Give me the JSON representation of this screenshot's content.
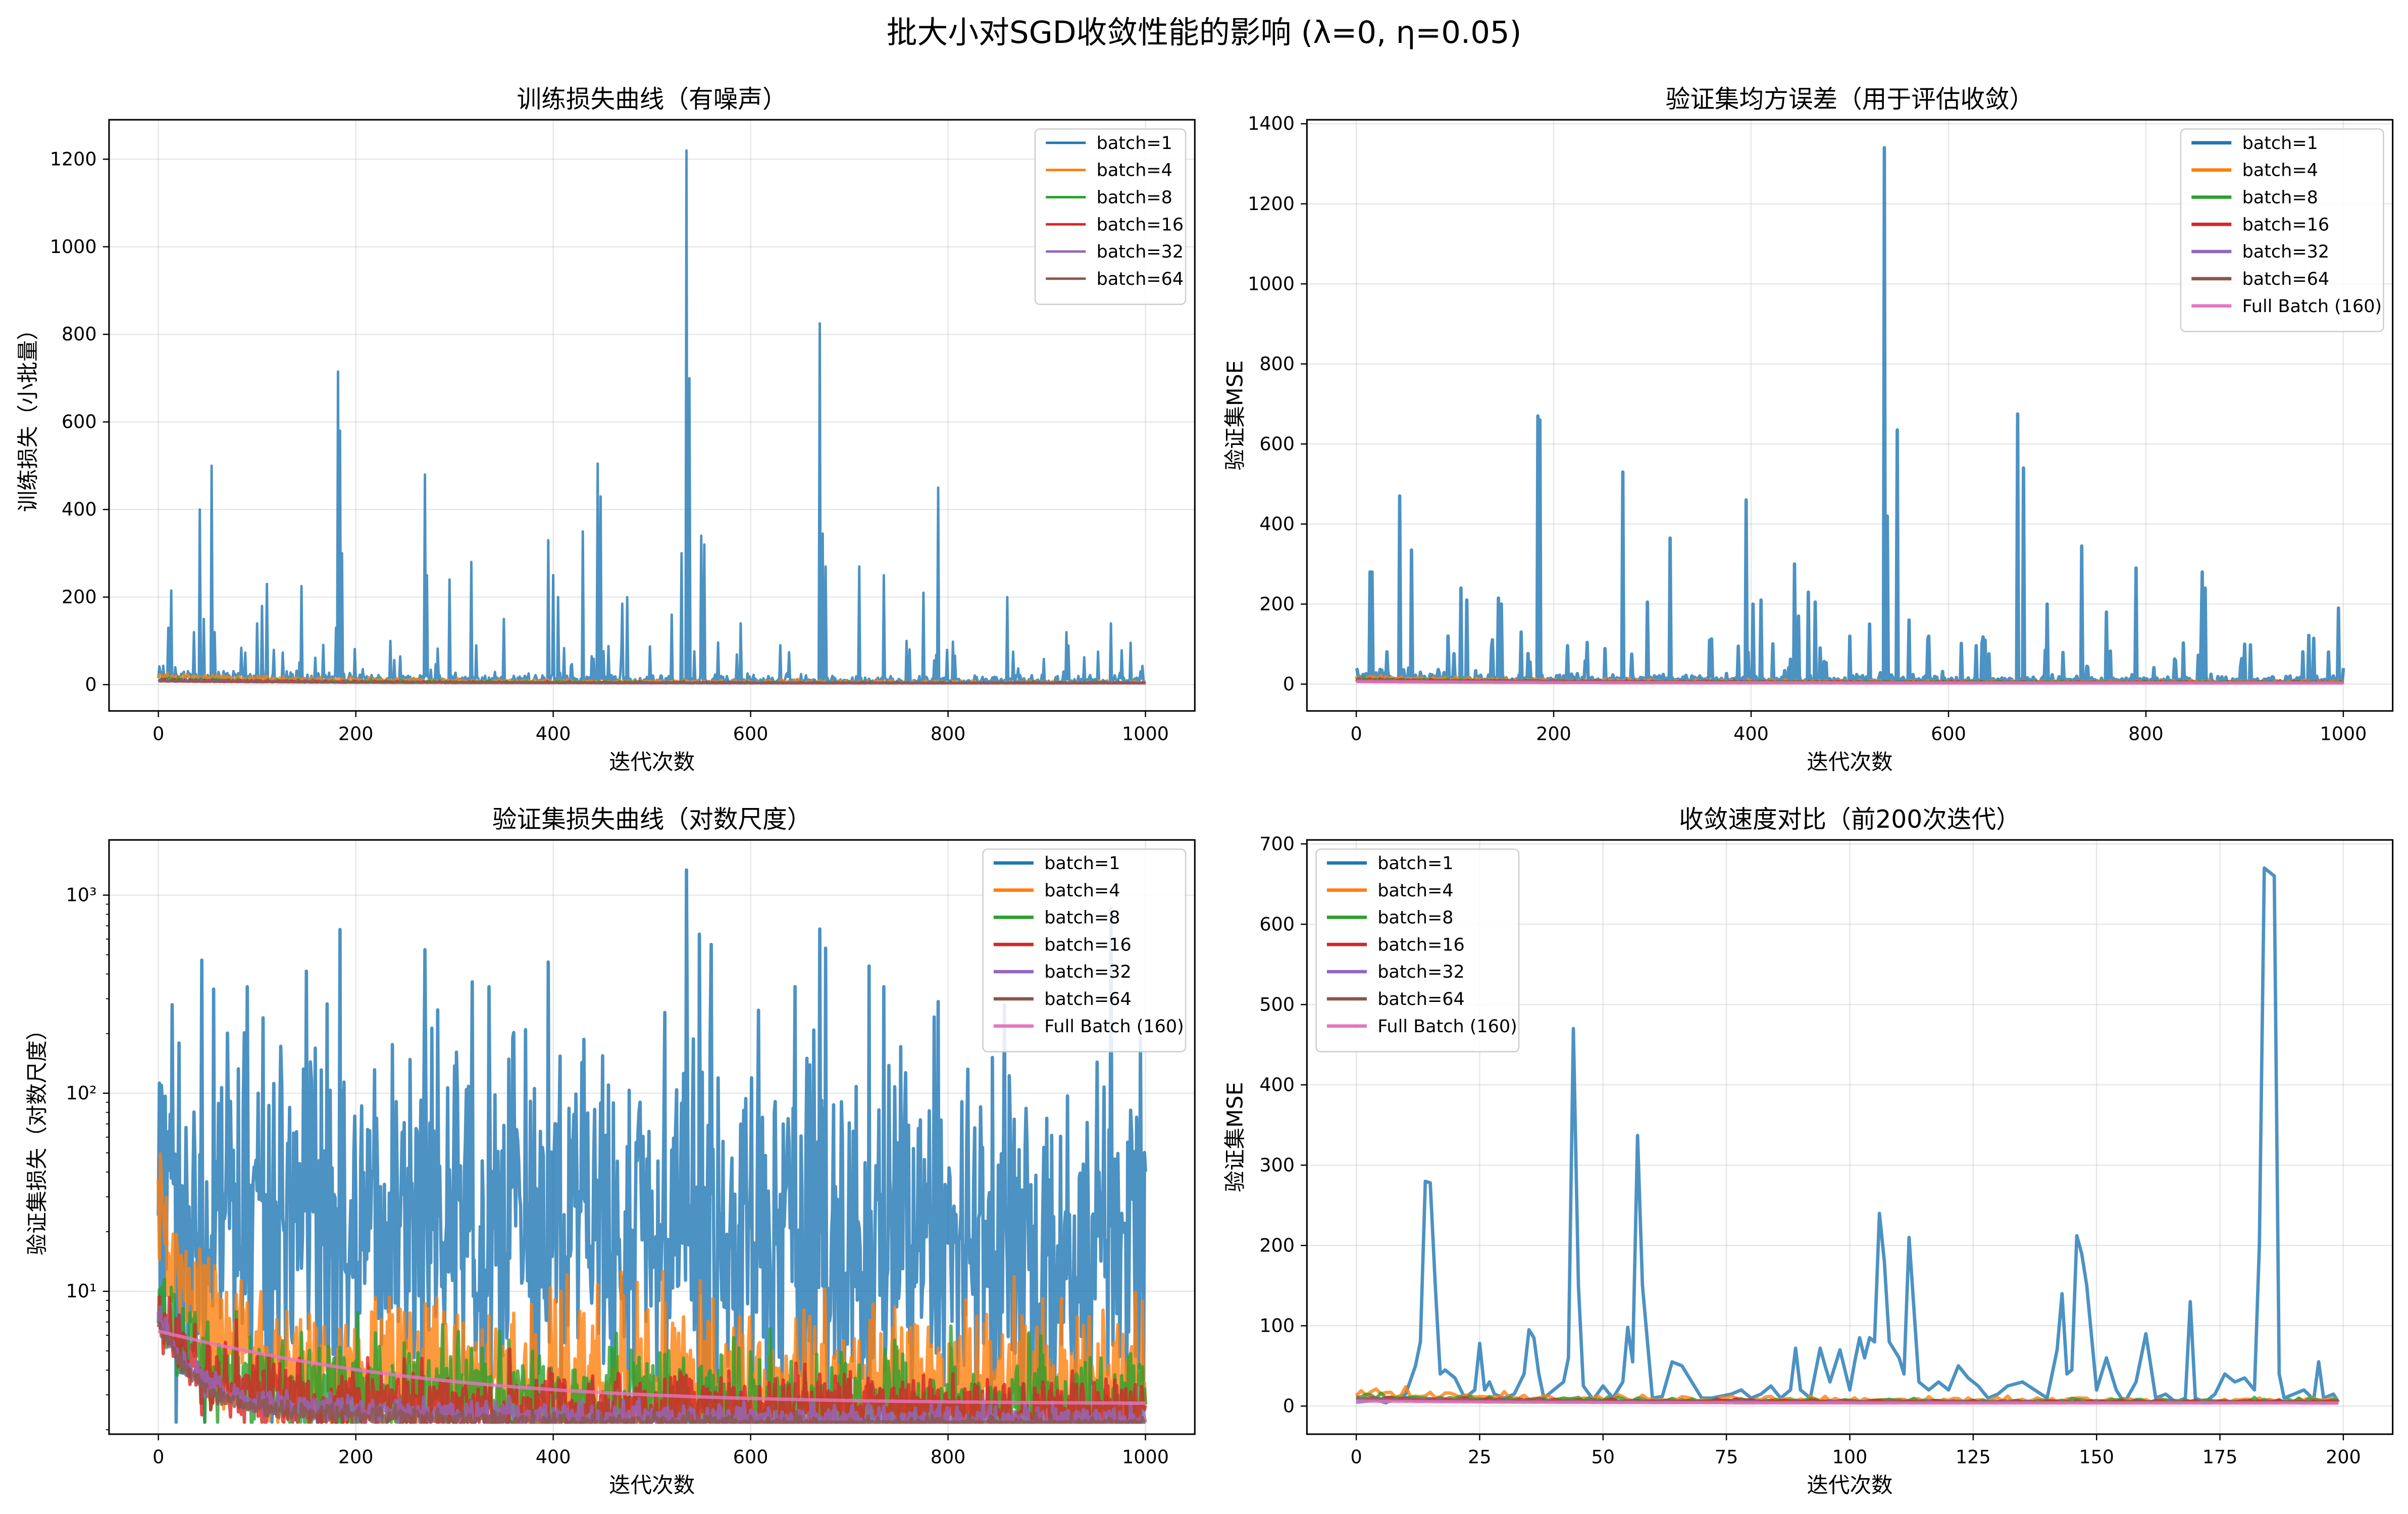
{
  "figure": {
    "title": "批大小对SGD收敛性能的影响 (λ=0, η=0.05)"
  },
  "colors": {
    "batch_1": "#1f77b4",
    "batch_4": "#ff7f0e",
    "batch_8": "#2ca02c",
    "batch_16": "#d62728",
    "batch_32": "#9467bd",
    "batch_64": "#8c564b",
    "full_batch": "#e377c2"
  },
  "chart_data": [
    {
      "id": "train",
      "type": "line",
      "title": "训练损失曲线（有噪声）",
      "xlabel": "迭代次数",
      "ylabel": "训练损失（小批量）",
      "xlim": [
        -50,
        1050
      ],
      "ylim": [
        -60,
        1290
      ],
      "yscale": "linear",
      "xticks": [
        0,
        200,
        400,
        600,
        800,
        1000
      ],
      "yticks": [
        0,
        200,
        400,
        600,
        800,
        1000,
        1200
      ],
      "grid": true,
      "legend": "upper right",
      "series": [
        {
          "name": "batch=1",
          "color": "#1f77b4",
          "kind": "noisy",
          "start": 8,
          "end": 3,
          "noise": 14,
          "spikes": [
            [
              10,
              130
            ],
            [
              13,
              215
            ],
            [
              36,
              120
            ],
            [
              42,
              400
            ],
            [
              46,
              150
            ],
            [
              54,
              500
            ],
            [
              57,
              120
            ],
            [
              100,
              140
            ],
            [
              105,
              180
            ],
            [
              110,
              230
            ],
            [
              145,
              225
            ],
            [
              180,
              130
            ],
            [
              182,
              715
            ],
            [
              184,
              580
            ],
            [
              186,
              300
            ],
            [
              235,
              100
            ],
            [
              270,
              480
            ],
            [
              272,
              250
            ],
            [
              295,
              240
            ],
            [
              317,
              280
            ],
            [
              350,
              150
            ],
            [
              395,
              330
            ],
            [
              400,
              250
            ],
            [
              405,
              200
            ],
            [
              430,
              350
            ],
            [
              445,
              505
            ],
            [
              448,
              430
            ],
            [
              470,
              185
            ],
            [
              475,
              200
            ],
            [
              520,
              160
            ],
            [
              530,
              300
            ],
            [
              535,
              1220
            ],
            [
              538,
              700
            ],
            [
              550,
              340
            ],
            [
              553,
              320
            ],
            [
              590,
              140
            ],
            [
              630,
              90
            ],
            [
              670,
              825
            ],
            [
              673,
              345
            ],
            [
              676,
              270
            ],
            [
              710,
              270
            ],
            [
              735,
              250
            ],
            [
              758,
              100
            ],
            [
              775,
              210
            ],
            [
              790,
              450
            ],
            [
              860,
              200
            ],
            [
              920,
              120
            ],
            [
              965,
              140
            ],
            [
              995,
              30
            ]
          ],
          "peak_density": 0.06,
          "peak_max": 90
        },
        {
          "name": "batch=4",
          "color": "#ff7f0e",
          "kind": "noisy",
          "start": 16,
          "end": 3,
          "noise": 5
        },
        {
          "name": "batch=8",
          "color": "#2ca02c",
          "kind": "noisy",
          "start": 10,
          "end": 3,
          "noise": 3
        },
        {
          "name": "batch=16",
          "color": "#d62728",
          "kind": "noisy",
          "start": 9,
          "end": 3,
          "noise": 2
        },
        {
          "name": "batch=32",
          "color": "#9467bd",
          "kind": "noisy",
          "start": 8,
          "end": 3,
          "noise": 1
        },
        {
          "name": "batch=64",
          "color": "#8c564b",
          "kind": "noisy",
          "start": 7,
          "end": 3,
          "noise": 0.6
        }
      ]
    },
    {
      "id": "valmse",
      "type": "line",
      "title": "验证集均方误差（用于评估收敛）",
      "xlabel": "迭代次数",
      "ylabel": "验证集MSE",
      "xlim": [
        -50,
        1050
      ],
      "ylim": [
        -67,
        1410
      ],
      "yscale": "linear",
      "xticks": [
        0,
        200,
        400,
        600,
        800,
        1000
      ],
      "yticks": [
        0,
        200,
        400,
        600,
        800,
        1000,
        1200,
        1400
      ],
      "grid": true,
      "legend": "upper right",
      "series": [
        {
          "name": "batch=1",
          "color": "#1f77b4",
          "kind": "noisy",
          "start": 8,
          "end": 3,
          "noise": 12,
          "spikes": [
            [
              14,
              280
            ],
            [
              16,
              280
            ],
            [
              44,
              470
            ],
            [
              56,
              335
            ],
            [
              106,
              240
            ],
            [
              112,
              210
            ],
            [
              144,
              215
            ],
            [
              147,
              200
            ],
            [
              167,
              130
            ],
            [
              184,
              670
            ],
            [
              186,
              660
            ],
            [
              270,
              530
            ],
            [
              295,
              205
            ],
            [
              318,
              365
            ],
            [
              395,
              460
            ],
            [
              402,
              200
            ],
            [
              410,
              210
            ],
            [
              444,
              300
            ],
            [
              448,
              170
            ],
            [
              458,
              230
            ],
            [
              465,
              205
            ],
            [
              500,
              120
            ],
            [
              520,
              150
            ],
            [
              535,
              1340
            ],
            [
              538,
              420
            ],
            [
              548,
              635
            ],
            [
              560,
              160
            ],
            [
              580,
              120
            ],
            [
              670,
              675
            ],
            [
              676,
              540
            ],
            [
              700,
              200
            ],
            [
              735,
              345
            ],
            [
              760,
              180
            ],
            [
              790,
              290
            ],
            [
              857,
              280
            ],
            [
              860,
              240
            ],
            [
              900,
              100
            ],
            [
              995,
              190
            ],
            [
              1000,
              40
            ]
          ],
          "peak_density": 0.07,
          "peak_max": 110
        },
        {
          "name": "batch=4",
          "color": "#ff7f0e",
          "kind": "noisy",
          "start": 12,
          "end": 3,
          "noise": 4
        },
        {
          "name": "batch=8",
          "color": "#2ca02c",
          "kind": "noisy",
          "start": 10,
          "end": 3,
          "noise": 2.5
        },
        {
          "name": "batch=16",
          "color": "#d62728",
          "kind": "noisy",
          "start": 9,
          "end": 3,
          "noise": 1.8
        },
        {
          "name": "batch=32",
          "color": "#9467bd",
          "kind": "noisy",
          "start": 8,
          "end": 3,
          "noise": 1
        },
        {
          "name": "batch=64",
          "color": "#8c564b",
          "kind": "noisy",
          "start": 7,
          "end": 3,
          "noise": 0.6
        },
        {
          "name": "Full Batch (160)",
          "color": "#e377c2",
          "kind": "smooth",
          "start": 6.4,
          "end": 2.7
        }
      ]
    },
    {
      "id": "vallog",
      "type": "line",
      "title": "验证集损失曲线（对数尺度）",
      "xlabel": "迭代次数",
      "ylabel": "验证集损失（对数尺度）",
      "xlim": [
        -50,
        1050
      ],
      "ylim": [
        1.9,
        1900
      ],
      "yscale": "log",
      "xticks": [
        0,
        200,
        400,
        600,
        800,
        1000
      ],
      "yticks": [
        10,
        100,
        1000
      ],
      "ytick_labels": [
        "10¹",
        "10²",
        "10³"
      ],
      "grid": true,
      "legend": "upper right",
      "series": [
        {
          "name": "batch=1",
          "color": "#1f77b4",
          "kind": "lognoisy",
          "base": 25,
          "sigma": 1.1,
          "spikes": [
            [
              14,
              280
            ],
            [
              44,
              470
            ],
            [
              56,
              335
            ],
            [
              106,
              240
            ],
            [
              184,
              670
            ],
            [
              270,
              530
            ],
            [
              318,
              365
            ],
            [
              395,
              460
            ],
            [
              535,
              1340
            ],
            [
              548,
              635
            ],
            [
              670,
              675
            ],
            [
              676,
              540
            ],
            [
              735,
              345
            ],
            [
              790,
              290
            ],
            [
              857,
              280
            ],
            [
              995,
              190
            ]
          ]
        },
        {
          "name": "batch=4",
          "color": "#ff7f0e",
          "kind": "lognoisy",
          "base": 4.5,
          "sigma": 0.45,
          "startboost": 23
        },
        {
          "name": "batch=8",
          "color": "#2ca02c",
          "kind": "lognoisy",
          "base": 3.6,
          "sigma": 0.3,
          "startboost": 10
        },
        {
          "name": "batch=16",
          "color": "#d62728",
          "kind": "lognoisy",
          "base": 3.3,
          "sigma": 0.22,
          "startboost": 8.5
        },
        {
          "name": "batch=32",
          "color": "#9467bd",
          "kind": "lognoisy",
          "base": 3.0,
          "sigma": 0.08,
          "startboost": 7.5
        },
        {
          "name": "batch=64",
          "color": "#8c564b",
          "kind": "lognoisy",
          "base": 2.8,
          "sigma": 0.05,
          "startboost": 7
        },
        {
          "name": "Full Batch (160)",
          "color": "#e377c2",
          "kind": "smooth",
          "start": 6.3,
          "end": 2.7
        }
      ]
    },
    {
      "id": "first200",
      "type": "line",
      "title": "收敛速度对比（前200次迭代）",
      "xlabel": "迭代次数",
      "ylabel": "验证集MSE",
      "xlim": [
        -10,
        210
      ],
      "ylim": [
        -35,
        705
      ],
      "yscale": "linear",
      "xticks": [
        0,
        25,
        50,
        75,
        100,
        125,
        150,
        175,
        200
      ],
      "yticks": [
        0,
        100,
        200,
        300,
        400,
        500,
        600,
        700
      ],
      "grid": true,
      "legend": "upper left",
      "series": [
        {
          "name": "batch=1",
          "color": "#1f77b4",
          "kind": "explicit",
          "x": [
            0,
            2,
            4,
            6,
            8,
            10,
            12,
            13,
            14,
            15,
            16,
            17,
            18,
            20,
            22,
            24,
            25,
            26,
            27,
            28,
            30,
            32,
            34,
            35,
            36,
            37,
            38,
            40,
            42,
            43,
            44,
            45,
            46,
            48,
            50,
            52,
            54,
            55,
            56,
            57,
            58,
            60,
            62,
            64,
            66,
            70,
            72,
            76,
            78,
            80,
            82,
            84,
            86,
            88,
            89,
            90,
            92,
            94,
            95,
            96,
            98,
            100,
            101,
            102,
            103,
            104,
            105,
            106,
            107,
            108,
            110,
            111,
            112,
            113,
            114,
            116,
            118,
            120,
            122,
            124,
            126,
            128,
            130,
            132,
            135,
            140,
            142,
            143,
            144,
            145,
            146,
            147,
            148,
            150,
            152,
            154,
            155,
            156,
            158,
            160,
            162,
            164,
            166,
            168,
            169,
            170,
            172,
            174,
            176,
            178,
            180,
            182,
            183,
            184,
            185,
            186,
            187,
            188,
            190,
            192,
            194,
            195,
            196,
            198,
            199
          ],
          "y": [
            5,
            6,
            8,
            4,
            10,
            15,
            50,
            80,
            280,
            278,
            150,
            40,
            45,
            35,
            10,
            20,
            78,
            20,
            30,
            15,
            10,
            15,
            40,
            95,
            85,
            40,
            10,
            20,
            30,
            60,
            470,
            150,
            25,
            8,
            25,
            10,
            30,
            98,
            55,
            337,
            150,
            10,
            12,
            55,
            50,
            10,
            10,
            15,
            20,
            10,
            15,
            25,
            10,
            20,
            72,
            20,
            10,
            72,
            50,
            30,
            70,
            20,
            55,
            85,
            60,
            85,
            80,
            240,
            180,
            80,
            60,
            40,
            210,
            120,
            30,
            20,
            30,
            20,
            50,
            35,
            25,
            10,
            15,
            25,
            30,
            10,
            70,
            140,
            40,
            45,
            212,
            190,
            150,
            20,
            60,
            20,
            10,
            8,
            30,
            90,
            10,
            15,
            5,
            10,
            130,
            10,
            5,
            15,
            40,
            30,
            35,
            20,
            200,
            670,
            665,
            660,
            40,
            10,
            15,
            20,
            8,
            55,
            10,
            15,
            5
          ]
        },
        {
          "name": "batch=4",
          "color": "#ff7f0e",
          "kind": "noisy",
          "start": 12,
          "end": 5,
          "noise": 5,
          "x0": 0,
          "x1": 199
        },
        {
          "name": "batch=8",
          "color": "#2ca02c",
          "kind": "noisy",
          "start": 10,
          "end": 5,
          "noise": 3,
          "x0": 0,
          "x1": 199
        },
        {
          "name": "batch=16",
          "color": "#d62728",
          "kind": "noisy",
          "start": 9,
          "end": 4.5,
          "noise": 2,
          "x0": 0,
          "x1": 199
        },
        {
          "name": "batch=32",
          "color": "#9467bd",
          "kind": "noisy",
          "start": 8,
          "end": 4,
          "noise": 1,
          "x0": 0,
          "x1": 199
        },
        {
          "name": "batch=64",
          "color": "#8c564b",
          "kind": "noisy",
          "start": 7,
          "end": 4,
          "noise": 0.6,
          "x0": 0,
          "x1": 199
        },
        {
          "name": "Full Batch (160)",
          "color": "#e377c2",
          "kind": "smooth",
          "start": 6.3,
          "end": 3.7,
          "x0": 0,
          "x1": 199
        }
      ]
    }
  ]
}
